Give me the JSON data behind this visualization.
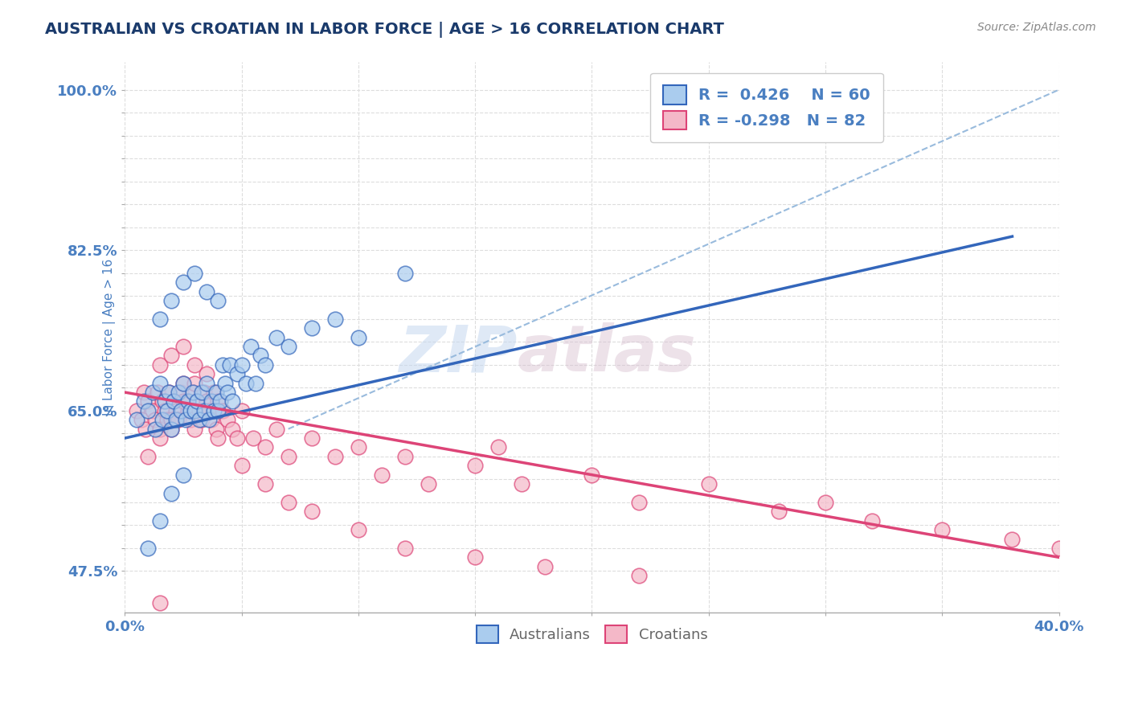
{
  "title": "AUSTRALIAN VS CROATIAN IN LABOR FORCE | AGE > 16 CORRELATION CHART",
  "source_text": "Source: ZipAtlas.com",
  "ylabel": "In Labor Force | Age > 16",
  "xlim": [
    0.0,
    0.4
  ],
  "ylim": [
    0.43,
    1.03
  ],
  "xticks": [
    0.0,
    0.05,
    0.1,
    0.15,
    0.2,
    0.25,
    0.3,
    0.35,
    0.4
  ],
  "xticklabels": [
    "0.0%",
    "",
    "",
    "",
    "",
    "",
    "",
    "",
    "40.0%"
  ],
  "ytick_positions": [
    0.475,
    0.5,
    0.525,
    0.55,
    0.575,
    0.6,
    0.625,
    0.65,
    0.675,
    0.7,
    0.725,
    0.75,
    0.775,
    0.8,
    0.825,
    0.85,
    0.875,
    0.9,
    0.925,
    0.95,
    0.975,
    1.0
  ],
  "ytick_labels_show": [
    0.475,
    0.65,
    0.825,
    1.0
  ],
  "ytick_label_map": {
    "0.475": "47.5%",
    "0.65": "65.0%",
    "0.825": "82.5%",
    "1.0": "100.0%"
  },
  "australian_R": 0.426,
  "australian_N": 60,
  "croatian_R": -0.298,
  "croatian_N": 82,
  "blue_color": "#aaccee",
  "pink_color": "#f4b8c8",
  "blue_line_color": "#3366bb",
  "pink_line_color": "#dd4477",
  "ref_line_color": "#99bbdd",
  "title_color": "#1a3a6b",
  "axis_color": "#4a7fc1",
  "watermark_zip": "ZIP",
  "watermark_atlas": "atlas",
  "background_color": "#ffffff",
  "grid_color": "#dddddd",
  "blue_trend_x": [
    0.0,
    0.38
  ],
  "blue_trend_y": [
    0.62,
    0.84
  ],
  "pink_trend_x": [
    0.0,
    0.4
  ],
  "pink_trend_y": [
    0.67,
    0.49
  ],
  "ref_line_x": [
    0.07,
    0.4
  ],
  "ref_line_y": [
    0.63,
    1.0
  ],
  "australian_scatter_x": [
    0.005,
    0.008,
    0.01,
    0.012,
    0.013,
    0.015,
    0.016,
    0.017,
    0.018,
    0.019,
    0.02,
    0.021,
    0.022,
    0.023,
    0.024,
    0.025,
    0.026,
    0.027,
    0.028,
    0.029,
    0.03,
    0.031,
    0.032,
    0.033,
    0.034,
    0.035,
    0.036,
    0.037,
    0.038,
    0.039,
    0.04,
    0.041,
    0.042,
    0.043,
    0.044,
    0.045,
    0.046,
    0.048,
    0.05,
    0.052,
    0.054,
    0.056,
    0.058,
    0.06,
    0.065,
    0.07,
    0.08,
    0.09,
    0.1,
    0.12,
    0.01,
    0.015,
    0.02,
    0.025,
    0.015,
    0.02,
    0.025,
    0.03,
    0.035,
    0.04
  ],
  "australian_scatter_y": [
    0.64,
    0.66,
    0.65,
    0.67,
    0.63,
    0.68,
    0.64,
    0.66,
    0.65,
    0.67,
    0.63,
    0.66,
    0.64,
    0.67,
    0.65,
    0.68,
    0.64,
    0.66,
    0.65,
    0.67,
    0.65,
    0.66,
    0.64,
    0.67,
    0.65,
    0.68,
    0.64,
    0.66,
    0.65,
    0.67,
    0.65,
    0.66,
    0.7,
    0.68,
    0.67,
    0.7,
    0.66,
    0.69,
    0.7,
    0.68,
    0.72,
    0.68,
    0.71,
    0.7,
    0.73,
    0.72,
    0.74,
    0.75,
    0.73,
    0.8,
    0.5,
    0.53,
    0.56,
    0.58,
    0.75,
    0.77,
    0.79,
    0.8,
    0.78,
    0.77
  ],
  "croatian_scatter_x": [
    0.005,
    0.007,
    0.008,
    0.009,
    0.01,
    0.012,
    0.013,
    0.014,
    0.015,
    0.016,
    0.017,
    0.018,
    0.019,
    0.02,
    0.021,
    0.022,
    0.023,
    0.024,
    0.025,
    0.026,
    0.027,
    0.028,
    0.029,
    0.03,
    0.031,
    0.032,
    0.033,
    0.034,
    0.035,
    0.036,
    0.037,
    0.038,
    0.039,
    0.04,
    0.042,
    0.044,
    0.046,
    0.048,
    0.05,
    0.055,
    0.06,
    0.065,
    0.07,
    0.08,
    0.09,
    0.1,
    0.11,
    0.12,
    0.13,
    0.15,
    0.17,
    0.2,
    0.22,
    0.25,
    0.28,
    0.3,
    0.32,
    0.35,
    0.38,
    0.4,
    0.01,
    0.015,
    0.02,
    0.025,
    0.03,
    0.015,
    0.02,
    0.025,
    0.03,
    0.035,
    0.04,
    0.05,
    0.06,
    0.07,
    0.08,
    0.1,
    0.12,
    0.15,
    0.18,
    0.22,
    0.015,
    0.16
  ],
  "croatian_scatter_y": [
    0.65,
    0.64,
    0.67,
    0.63,
    0.66,
    0.65,
    0.64,
    0.67,
    0.63,
    0.66,
    0.65,
    0.64,
    0.67,
    0.63,
    0.66,
    0.65,
    0.64,
    0.67,
    0.68,
    0.66,
    0.65,
    0.64,
    0.67,
    0.63,
    0.66,
    0.65,
    0.64,
    0.67,
    0.66,
    0.65,
    0.64,
    0.67,
    0.63,
    0.66,
    0.65,
    0.64,
    0.63,
    0.62,
    0.65,
    0.62,
    0.61,
    0.63,
    0.6,
    0.62,
    0.6,
    0.61,
    0.58,
    0.6,
    0.57,
    0.59,
    0.57,
    0.58,
    0.55,
    0.57,
    0.54,
    0.55,
    0.53,
    0.52,
    0.51,
    0.5,
    0.6,
    0.62,
    0.64,
    0.66,
    0.68,
    0.7,
    0.71,
    0.72,
    0.7,
    0.69,
    0.62,
    0.59,
    0.57,
    0.55,
    0.54,
    0.52,
    0.5,
    0.49,
    0.48,
    0.47,
    0.44,
    0.61
  ]
}
